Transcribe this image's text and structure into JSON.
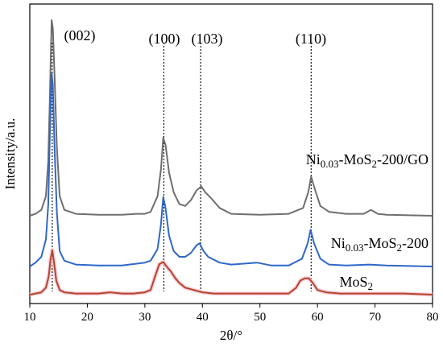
{
  "chart_data": {
    "type": "line",
    "title": "",
    "xlabel": "2θ/°",
    "ylabel": "Intensity/a.u.",
    "xlim": [
      10,
      80
    ],
    "x_ticks": [
      10,
      20,
      30,
      40,
      50,
      60,
      70,
      80
    ],
    "y_ticks_shown": false,
    "grid": false,
    "legend": "none",
    "reference_lines": [
      {
        "x": 13.9,
        "label": "(002)"
      },
      {
        "x": 33.3,
        "label": "(100)"
      },
      {
        "x": 39.7,
        "label": "(103)"
      },
      {
        "x": 58.9,
        "label": "(110)"
      }
    ],
    "series": [
      {
        "name_main": "Ni",
        "name_sub": "0.03",
        "name_mid": "-MoS",
        "name_sub2": "2",
        "name_tail": "-200/GO",
        "color": "#6e6e6e",
        "offset": 52,
        "x": [
          10,
          11,
          12,
          12.8,
          13.2,
          13.5,
          13.8,
          14.0,
          14.3,
          14.7,
          15.2,
          16.0,
          18,
          22,
          26,
          28.5,
          29,
          30,
          31,
          32.2,
          32.8,
          33.2,
          33.6,
          34.2,
          35,
          36,
          37,
          38,
          39,
          39.8,
          40.5,
          41.5,
          43,
          45,
          50,
          55,
          57.5,
          58.4,
          58.9,
          59.5,
          60.5,
          62,
          65,
          68,
          69.3,
          70.5,
          72,
          80
        ],
        "y": [
          0,
          1,
          3,
          10,
          28,
          62,
          100,
          96,
          72,
          35,
          10,
          3,
          1,
          0.5,
          0.5,
          1,
          1,
          1,
          2,
          10,
          24,
          40,
          36,
          22,
          12,
          6,
          5,
          8,
          13,
          15,
          12,
          9,
          4,
          1,
          0.5,
          1,
          4,
          12,
          20,
          14,
          5,
          2,
          1,
          1,
          3,
          1,
          0.5,
          0
        ]
      },
      {
        "name_main": "Ni",
        "name_sub": "0.03",
        "name_mid": "-MoS",
        "name_sub2": "2",
        "name_tail": "-200",
        "color": "#2f67c9",
        "offset": 27,
        "x": [
          10,
          11,
          12,
          12.8,
          13.2,
          13.5,
          13.8,
          14.0,
          14.3,
          14.7,
          15.2,
          16.0,
          18,
          22,
          26,
          30,
          31,
          32.2,
          32.8,
          33.2,
          33.6,
          34.2,
          35,
          36,
          37,
          38,
          39,
          39.5,
          40.2,
          41,
          43,
          45,
          49.5,
          52,
          55,
          57.3,
          58.3,
          58.8,
          59.4,
          60.5,
          62,
          65,
          69,
          72,
          80
        ],
        "y": [
          0,
          2,
          5,
          14,
          32,
          70,
          100,
          94,
          62,
          28,
          8,
          3,
          1,
          0.5,
          0.5,
          2,
          3,
          9,
          22,
          36,
          30,
          16,
          8,
          5,
          5,
          7,
          11,
          12,
          8,
          5,
          2,
          1,
          2,
          0.5,
          0.5,
          4,
          12,
          19,
          12,
          4,
          1,
          0.5,
          1,
          0.5,
          0
        ]
      },
      {
        "name_main": "MoS",
        "name_sub": "2",
        "name_mid": "",
        "name_sub2": "",
        "name_tail": "",
        "color": "#b5452a",
        "offset": 0,
        "x": [
          10,
          11,
          12,
          12.8,
          13.3,
          13.6,
          13.9,
          14.2,
          14.6,
          15.2,
          16,
          18,
          22,
          24,
          26,
          28,
          30,
          31,
          31.8,
          32.5,
          33.2,
          33.8,
          34.5,
          35.3,
          36,
          37,
          38.5,
          40,
          42,
          45,
          50,
          55,
          56.3,
          57,
          57.8,
          58.5,
          59.2,
          60,
          61.5,
          64,
          70,
          75,
          80
        ],
        "y": [
          0,
          0.5,
          1,
          3,
          8,
          15,
          19,
          14,
          6,
          2,
          1,
          0.5,
          0.5,
          1,
          0.5,
          0.5,
          1,
          2,
          8,
          13,
          14,
          12,
          10,
          7,
          5,
          3,
          2,
          1,
          0.5,
          0.5,
          0.5,
          0.5,
          3,
          6,
          7,
          7,
          5,
          2,
          1,
          0.5,
          0.5,
          0.5,
          0
        ]
      }
    ]
  }
}
